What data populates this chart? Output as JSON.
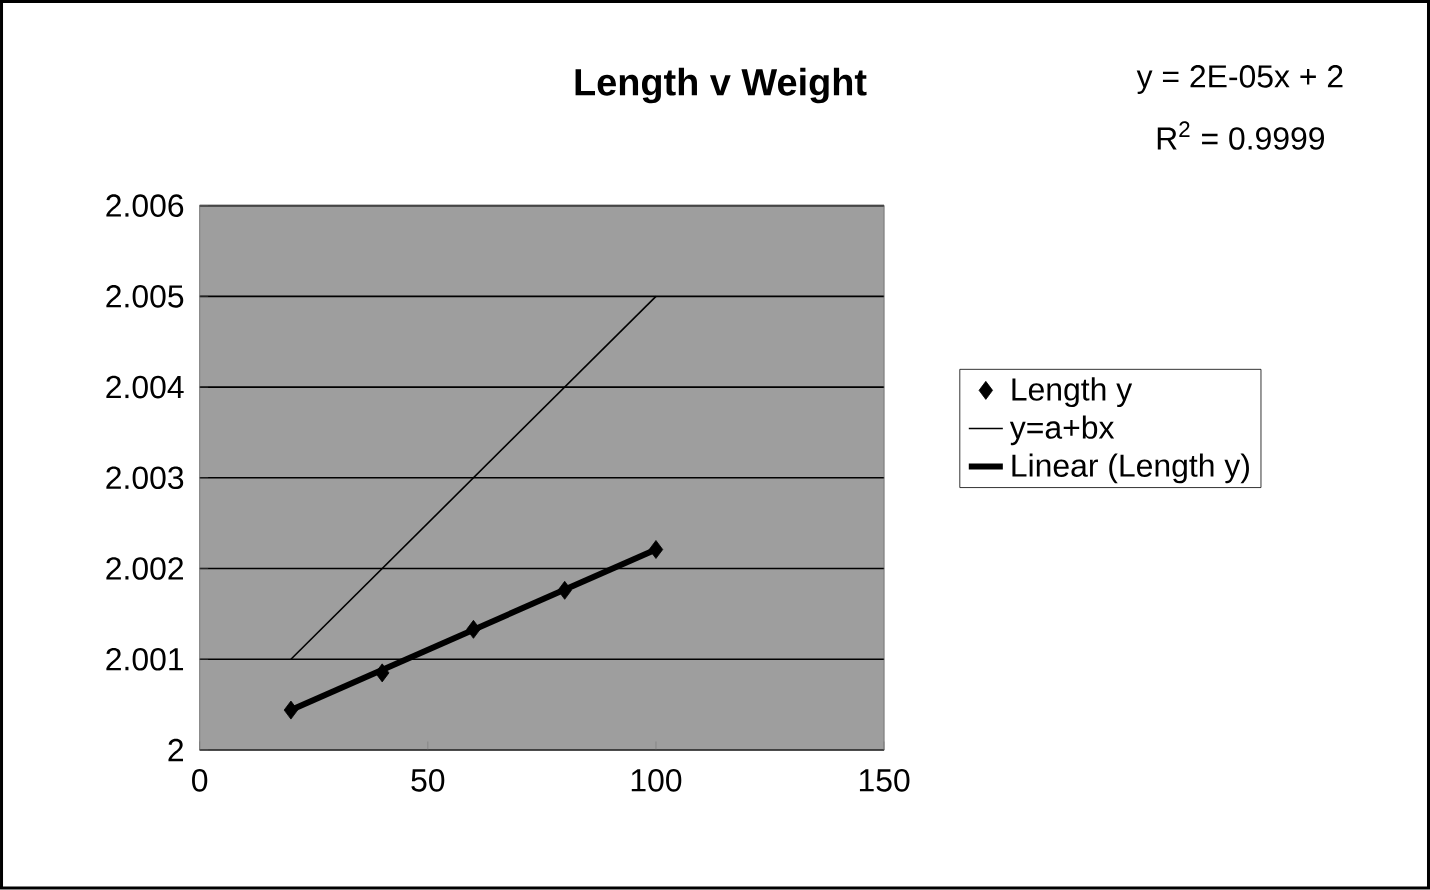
{
  "chart_data": {
    "type": "scatter",
    "title": "Length v Weight",
    "annotations": [
      "y = 2E-05x + 2",
      "R$^{2}$ = 0.9999"
    ],
    "series": [
      {
        "name": "Length y",
        "color": "#000000",
        "marker": "diamond",
        "x": [
          20,
          40,
          60,
          80,
          100
        ],
        "values": [
          2.00044,
          2.00085,
          2.00133,
          2.00176,
          2.00221
        ]
      },
      {
        "name": "y=a+bx",
        "type": "line",
        "color": "#000000",
        "marker": "none",
        "line_style": "solid",
        "x": [
          20,
          100
        ],
        "values": [
          2.001,
          2.005
        ]
      },
      {
        "name": "Linear (Length y)",
        "type": "line",
        "color": "#000000",
        "marker": "none",
        "line_style": "solid",
        "x": [
          20,
          100
        ],
        "values": [
          2.00044,
          2.00221
        ]
      }
    ],
    "xlim": [
      0,
      150
    ],
    "xticks": [
      0,
      50,
      100,
      150
    ],
    "ylim": [
      2,
      2.006
    ],
    "yticks": [
      2,
      2.001,
      2.002,
      2.003,
      2.004,
      2.005,
      2.006
    ],
    "grid": "y",
    "legend": "right"
  }
}
